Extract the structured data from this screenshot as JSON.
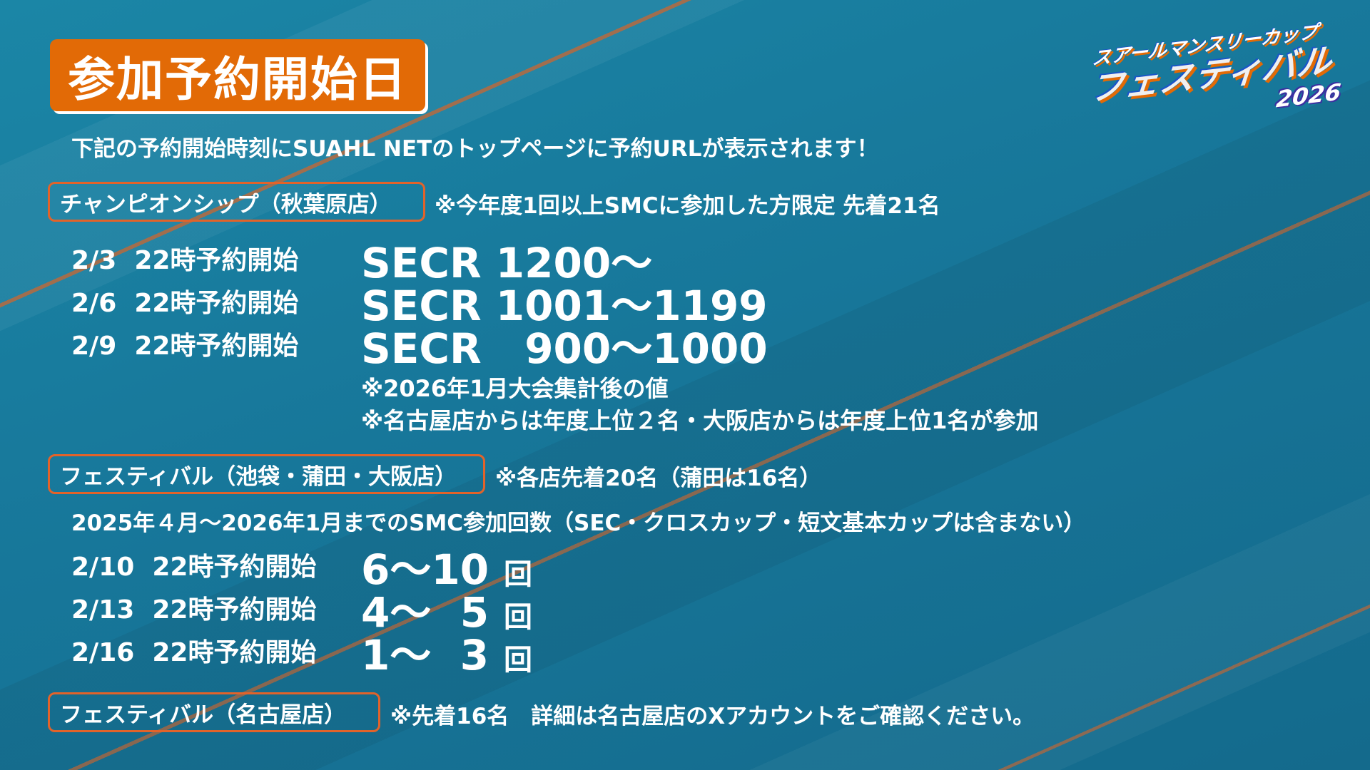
{
  "title": "参加予約開始日",
  "subtitle": "下記の予約開始時刻にSUAHL NETのトップページに予約URLが表示されます！",
  "logo": {
    "line1": "スアールマンスリーカップ",
    "line2": "フェスティバル",
    "year": "2026"
  },
  "championship": {
    "label": "チャンピオンシップ（秋葉原店）",
    "note": "※今年度1回以上SMCに参加した方限定 先着21名",
    "rows": [
      {
        "date": "2/3  22時予約開始",
        "value": "SECR 1200～"
      },
      {
        "date": "2/6  22時予約開始",
        "value": "SECR 1001～1199"
      },
      {
        "date": "2/9  22時予約開始",
        "value": "SECR   900～1000"
      }
    ],
    "notes": [
      "※2026年1月大会集計後の値",
      "※名古屋店からは年度上位２名・大阪店からは年度上位1名が参加"
    ]
  },
  "festival": {
    "label": "フェスティバル（池袋・蒲田・大阪店）",
    "note": "※各店先着20名（蒲田は16名）",
    "desc": "2025年４月～2026年1月までのSMC参加回数（SEC・クロスカップ・短文基本カップは含まない）",
    "unit": "回",
    "rows": [
      {
        "date": "2/10  22時予約開始",
        "value": "6～10"
      },
      {
        "date": "2/13  22時予約開始",
        "value": "4～  5"
      },
      {
        "date": "2/16  22時予約開始",
        "value": "1～  3"
      }
    ]
  },
  "nagoya": {
    "label": "フェスティバル（名古屋店）",
    "note": "※先着16名　詳細は名古屋店のXアカウントをご確認ください。"
  },
  "colors": {
    "accent": "#e26a06",
    "background": "#17779a",
    "text": "#ffffff"
  }
}
